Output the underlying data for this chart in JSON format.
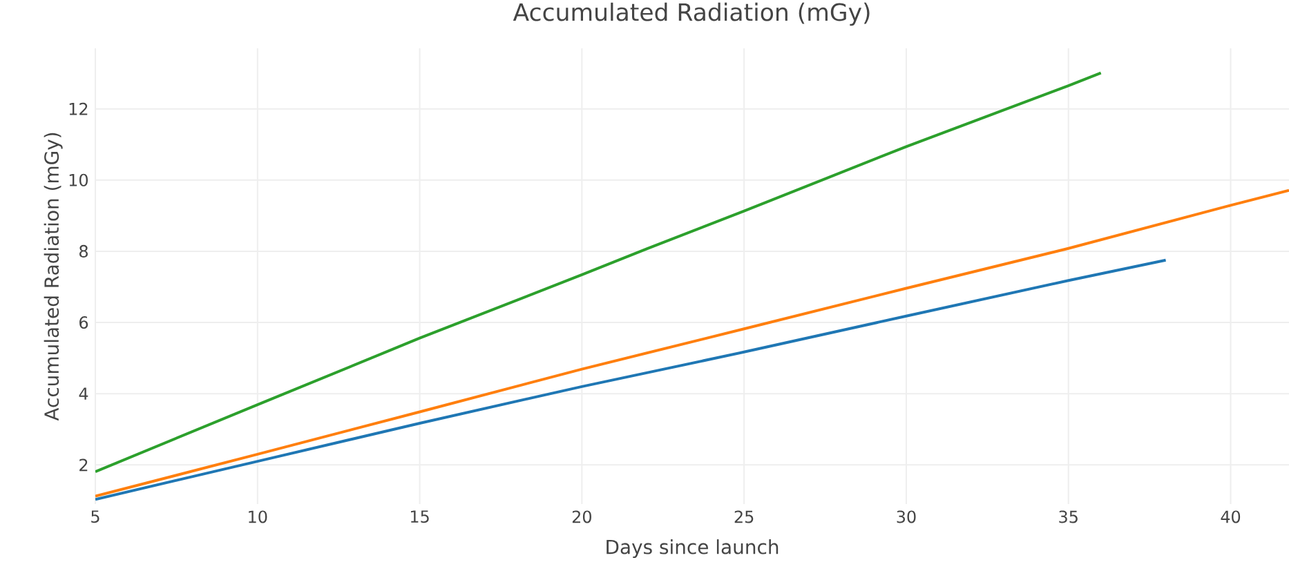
{
  "chart_data": {
    "type": "line",
    "title": "Accumulated Radiation (mGy)",
    "xlabel": "Days since launch",
    "ylabel": "Accumulated Radiation (mGy)",
    "xlim": [
      5,
      41.8
    ],
    "ylim": [
      0.9,
      13.7
    ],
    "xticks": [
      5,
      10,
      15,
      20,
      25,
      30,
      35,
      40
    ],
    "yticks": [
      2,
      4,
      6,
      8,
      10,
      12
    ],
    "grid": true,
    "legend": false,
    "marker": "none",
    "line_style": "solid",
    "series": [
      {
        "color": "#1f77b4",
        "x": [
          5,
          10,
          15,
          20,
          25,
          30,
          35,
          38
        ],
        "values": [
          1.03,
          2.1,
          3.17,
          4.2,
          5.17,
          6.18,
          7.18,
          7.75
        ]
      },
      {
        "color": "#ff7f0e",
        "x": [
          5,
          10,
          15,
          20,
          25,
          30,
          35,
          40,
          41.8
        ],
        "values": [
          1.12,
          2.3,
          3.49,
          4.69,
          5.82,
          6.96,
          8.08,
          9.29,
          9.71
        ]
      },
      {
        "color": "#2ca02c",
        "x": [
          5,
          10,
          15,
          20,
          22,
          25,
          30,
          35,
          36
        ],
        "values": [
          1.81,
          3.69,
          5.56,
          7.34,
          8.07,
          9.13,
          10.94,
          12.65,
          13.01
        ]
      }
    ]
  }
}
